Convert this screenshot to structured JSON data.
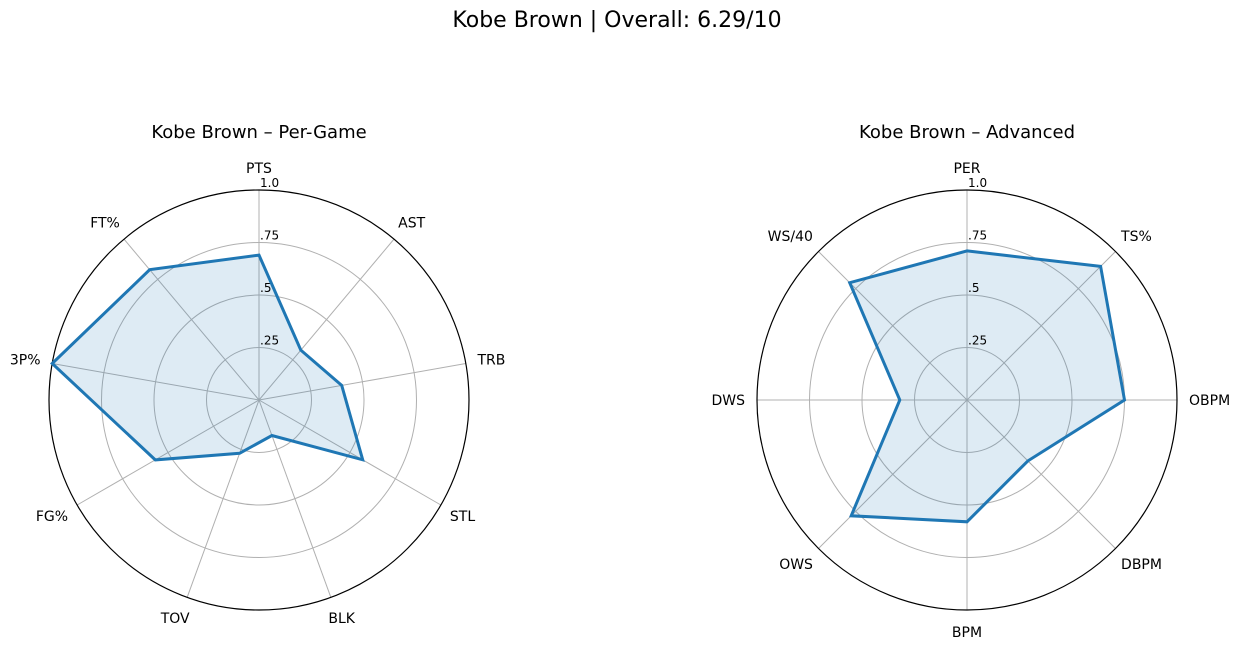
{
  "suptitle": "Kobe Brown | Overall: 6.29/10",
  "style": {
    "line_color": "#1f77b4",
    "fill_color": "#1f77b4",
    "grid_color": "#b0b0b0",
    "frame_color": "#000000"
  },
  "chart_data": [
    {
      "type": "radar",
      "title": "Kobe Brown – Per-Game",
      "rlim": [
        0,
        1
      ],
      "rticks": [
        0.25,
        0.5,
        0.75,
        1.0
      ],
      "rtick_labels": [
        ".25",
        ".5",
        ".75",
        "1.0"
      ],
      "categories": [
        "PTS",
        "AST",
        "TRB",
        "STL",
        "BLK",
        "TOV",
        "FG%",
        "3P%",
        "FT%"
      ],
      "values": [
        0.69,
        0.31,
        0.4,
        0.57,
        0.18,
        0.27,
        0.57,
        1.0,
        0.81
      ]
    },
    {
      "type": "radar",
      "title": "Kobe Brown – Advanced",
      "rlim": [
        0,
        1
      ],
      "rticks": [
        0.25,
        0.5,
        0.75,
        1.0
      ],
      "rtick_labels": [
        ".25",
        ".5",
        ".75",
        "1.0"
      ],
      "categories": [
        "PER",
        "TS%",
        "OBPM",
        "DBPM",
        "BPM",
        "OWS",
        "DWS",
        "WS/40"
      ],
      "values": [
        0.71,
        0.9,
        0.75,
        0.41,
        0.58,
        0.78,
        0.32,
        0.79
      ]
    }
  ]
}
